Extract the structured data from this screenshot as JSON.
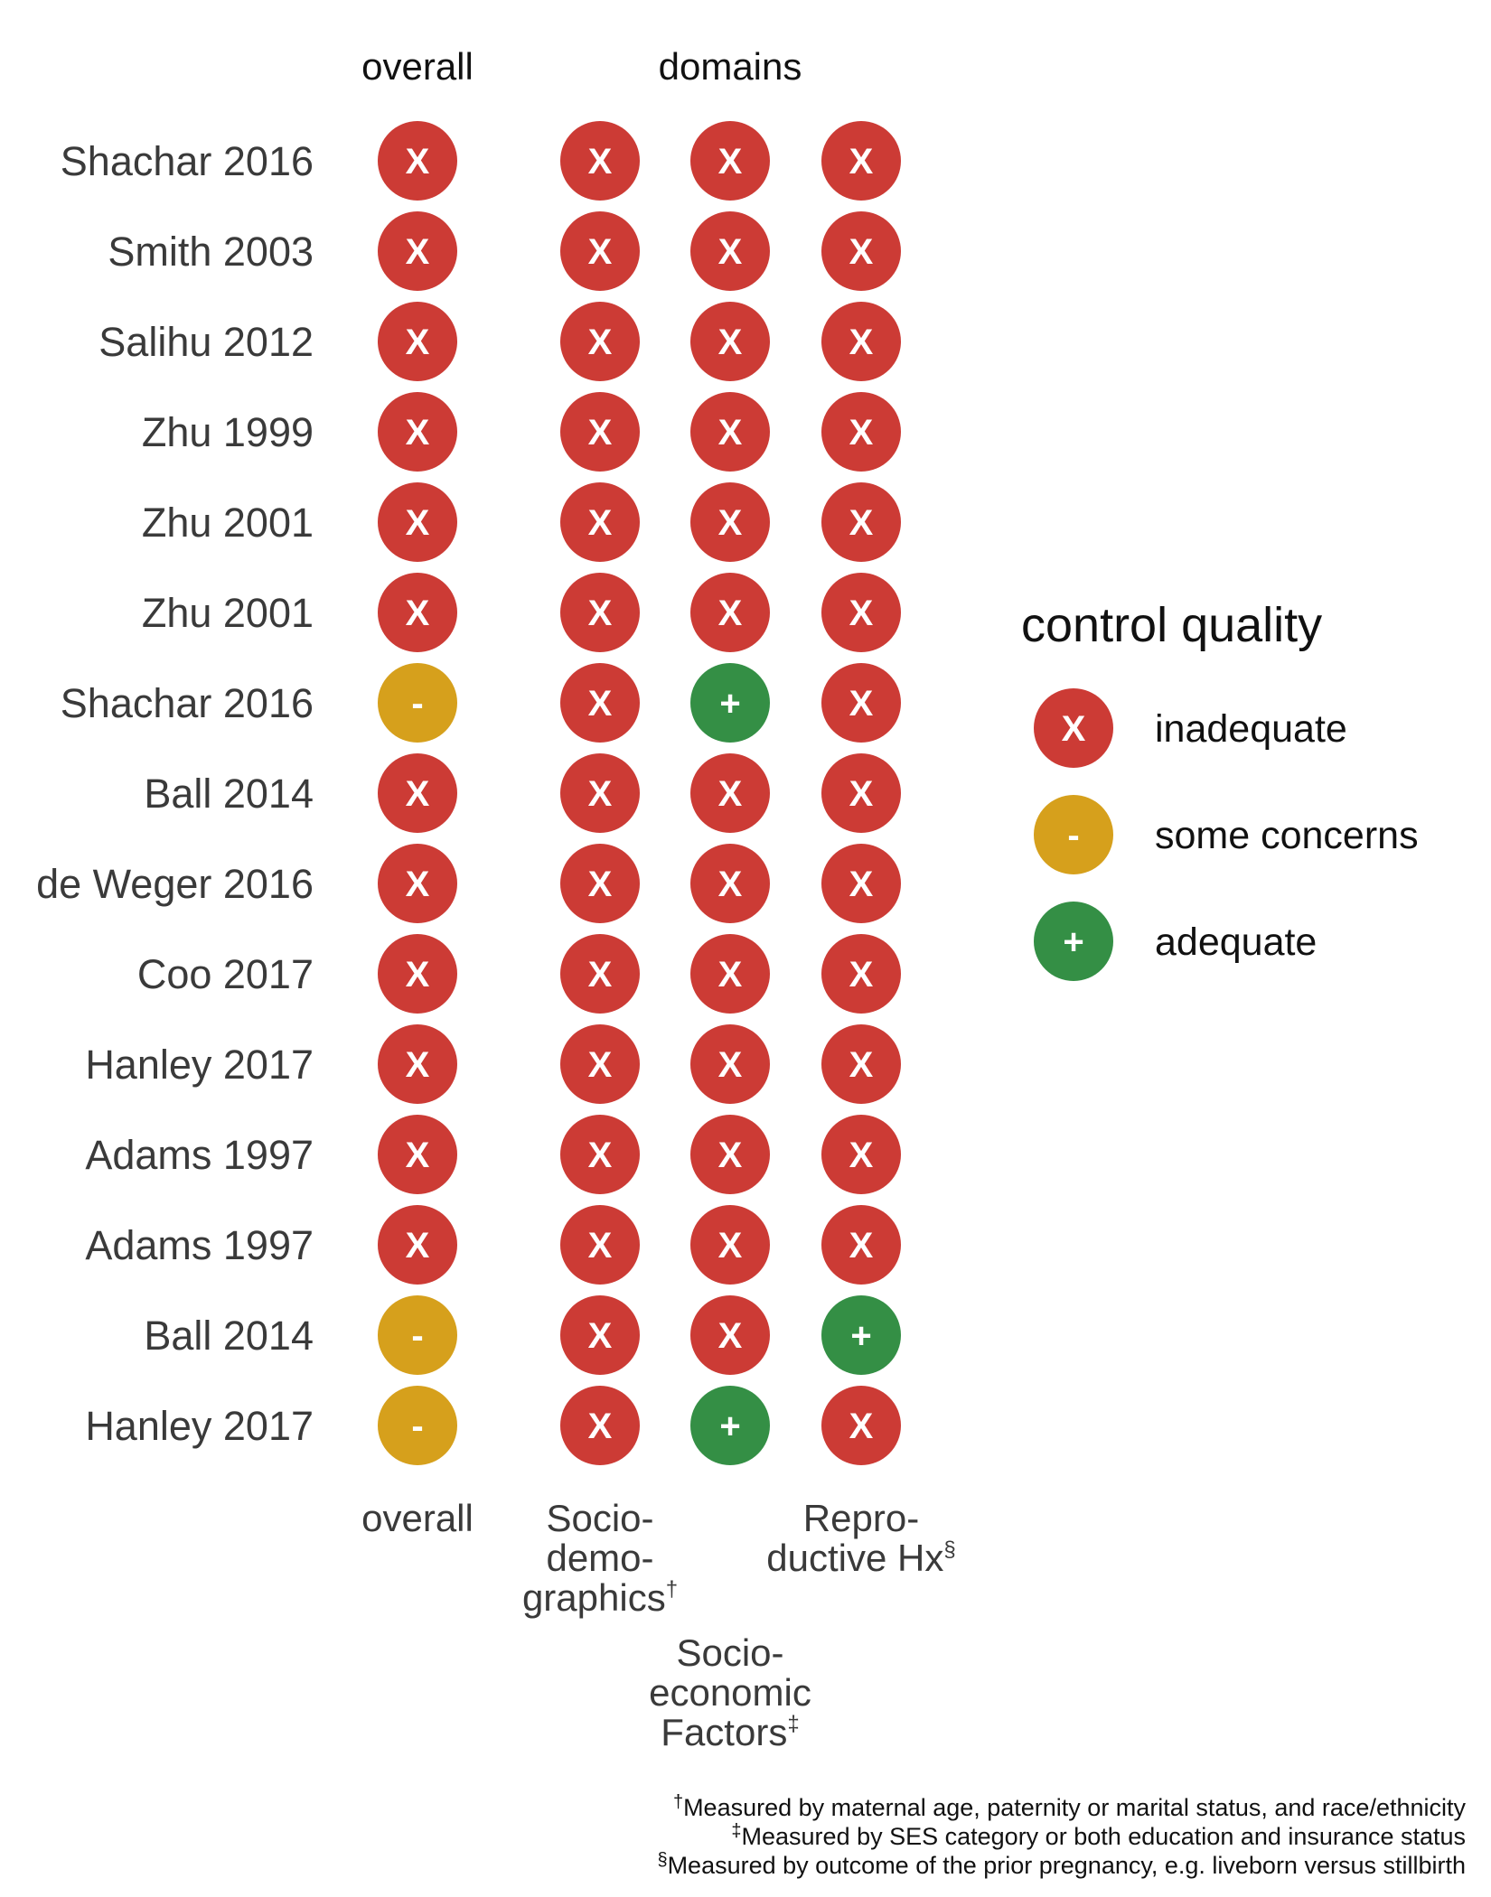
{
  "chart_data": {
    "type": "table",
    "top_headers": {
      "overall": "overall",
      "domains": "domains"
    },
    "columns": [
      {
        "key": "overall",
        "label_lines": [
          "overall"
        ],
        "sup": ""
      },
      {
        "key": "sociodemographics",
        "label_lines": [
          "Socio-",
          "demo-",
          "graphics"
        ],
        "sup": "†"
      },
      {
        "key": "socioeconomic",
        "label_lines": [
          "Socio-",
          "economic",
          "Factors"
        ],
        "sup": "‡"
      },
      {
        "key": "reproductive",
        "label_lines": [
          "Repro-",
          "ductive Hx"
        ],
        "sup": "§"
      }
    ],
    "rows": [
      {
        "study": "Shachar 2016",
        "ratings": [
          "inadequate",
          "inadequate",
          "inadequate",
          "inadequate"
        ]
      },
      {
        "study": "Smith 2003",
        "ratings": [
          "inadequate",
          "inadequate",
          "inadequate",
          "inadequate"
        ]
      },
      {
        "study": "Salihu 2012",
        "ratings": [
          "inadequate",
          "inadequate",
          "inadequate",
          "inadequate"
        ]
      },
      {
        "study": "Zhu 1999",
        "ratings": [
          "inadequate",
          "inadequate",
          "inadequate",
          "inadequate"
        ]
      },
      {
        "study": "Zhu 2001",
        "ratings": [
          "inadequate",
          "inadequate",
          "inadequate",
          "inadequate"
        ]
      },
      {
        "study": "Zhu 2001",
        "ratings": [
          "inadequate",
          "inadequate",
          "inadequate",
          "inadequate"
        ]
      },
      {
        "study": "Shachar 2016",
        "ratings": [
          "some concerns",
          "inadequate",
          "adequate",
          "inadequate"
        ]
      },
      {
        "study": "Ball 2014",
        "ratings": [
          "inadequate",
          "inadequate",
          "inadequate",
          "inadequate"
        ]
      },
      {
        "study": "de Weger 2016",
        "ratings": [
          "inadequate",
          "inadequate",
          "inadequate",
          "inadequate"
        ]
      },
      {
        "study": "Coo 2017",
        "ratings": [
          "inadequate",
          "inadequate",
          "inadequate",
          "inadequate"
        ]
      },
      {
        "study": "Hanley 2017",
        "ratings": [
          "inadequate",
          "inadequate",
          "inadequate",
          "inadequate"
        ]
      },
      {
        "study": "Adams 1997",
        "ratings": [
          "inadequate",
          "inadequate",
          "inadequate",
          "inadequate"
        ]
      },
      {
        "study": "Adams 1997",
        "ratings": [
          "inadequate",
          "inadequate",
          "inadequate",
          "inadequate"
        ]
      },
      {
        "study": "Ball 2014",
        "ratings": [
          "some concerns",
          "inadequate",
          "inadequate",
          "adequate"
        ]
      },
      {
        "study": "Hanley 2017",
        "ratings": [
          "some concerns",
          "inadequate",
          "adequate",
          "inadequate"
        ]
      }
    ],
    "legend": {
      "title": "control quality",
      "position": "right",
      "items": [
        {
          "key": "inadequate",
          "label": "inadequate",
          "symbol": "X",
          "color": "#cc3b35"
        },
        {
          "key": "some concerns",
          "label": "some concerns",
          "symbol": "-",
          "color": "#d6a01c"
        },
        {
          "key": "adequate",
          "label": "adequate",
          "symbol": "+",
          "color": "#348f45"
        }
      ]
    },
    "footnotes": [
      {
        "mark": "†",
        "text": "Measured by maternal age, paternity or marital status, and race/ethnicity"
      },
      {
        "mark": "‡",
        "text": "Measured by SES category or both education and insurance status"
      },
      {
        "mark": "§",
        "text": "Measured by outcome of the prior pregnancy, e.g. liveborn versus stillbirth"
      }
    ]
  }
}
